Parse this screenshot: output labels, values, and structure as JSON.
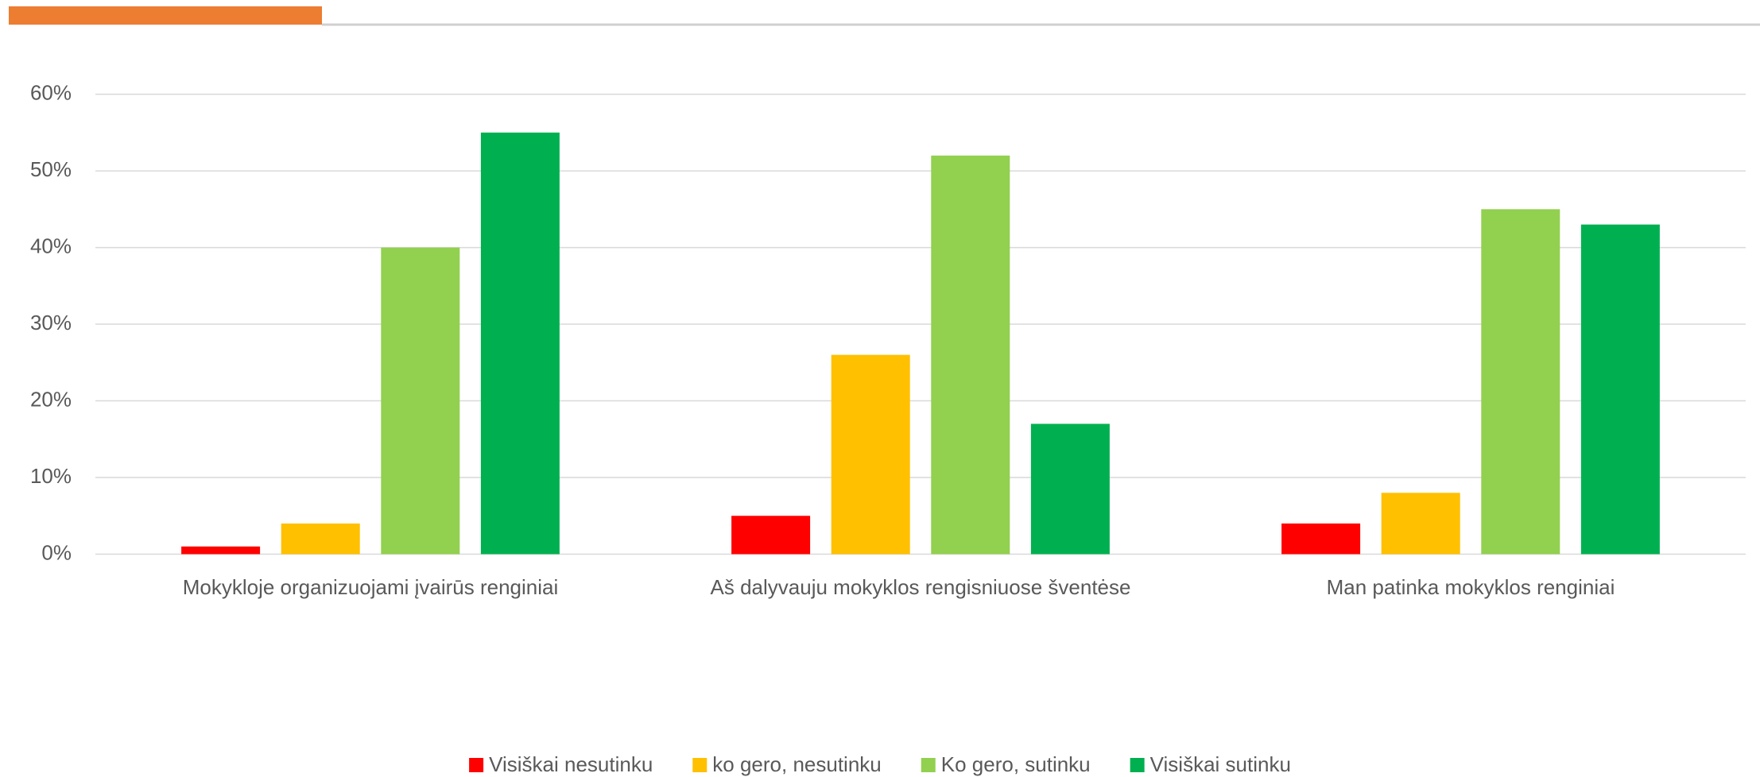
{
  "chart_data": {
    "type": "bar",
    "categories": [
      "Mokykloje organizuojami įvairūs renginiai",
      "Aš dalyvauju mokyklos rengisniuose šventėse",
      "Man patinka mokyklos renginiai"
    ],
    "series": [
      {
        "name": "Visiškai nesutinku",
        "color": "#ff0000",
        "values": [
          1,
          5,
          4
        ]
      },
      {
        "name": "ko gero, nesutinku",
        "color": "#ffc000",
        "values": [
          4,
          26,
          8
        ]
      },
      {
        "name": "Ko gero, sutinku",
        "color": "#92d050",
        "values": [
          40,
          52,
          45
        ]
      },
      {
        "name": "Visiškai sutinku",
        "color": "#00b050",
        "values": [
          55,
          17,
          43
        ]
      }
    ],
    "ylim": [
      0,
      60
    ],
    "yticks": [
      {
        "value": 0,
        "label": "0%"
      },
      {
        "value": 10,
        "label": "10%"
      },
      {
        "value": 20,
        "label": "20%"
      },
      {
        "value": 30,
        "label": "30%"
      },
      {
        "value": 40,
        "label": "40%"
      },
      {
        "value": 50,
        "label": "50%"
      },
      {
        "value": 60,
        "label": "60%"
      }
    ],
    "grid": true,
    "legend": "bottom"
  }
}
